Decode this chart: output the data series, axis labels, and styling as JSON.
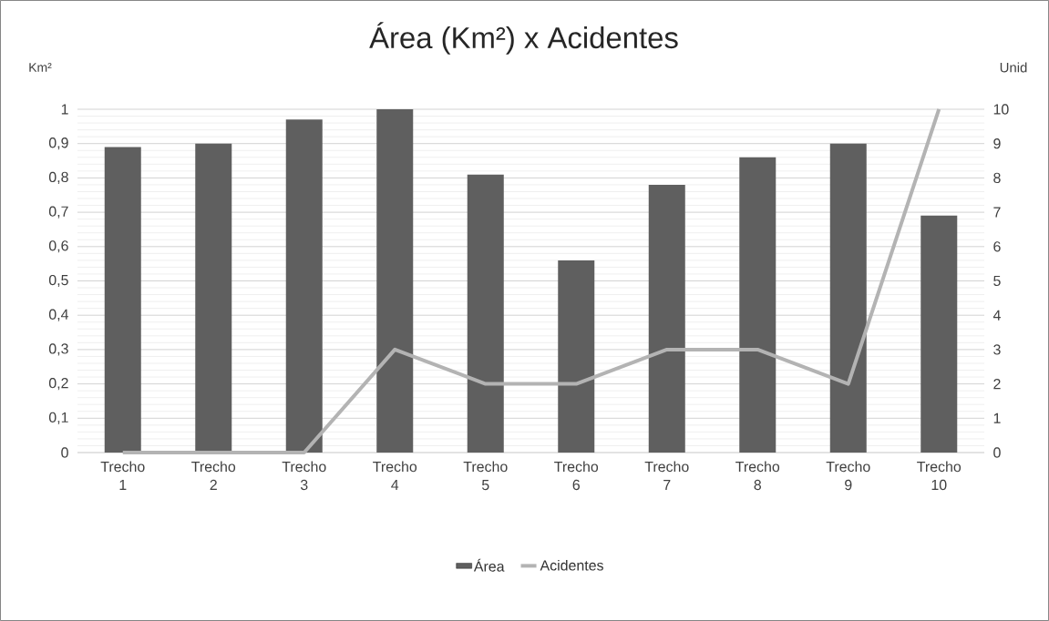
{
  "chart_data": {
    "type": "bar",
    "title": "Área (Km²) x Acidentes",
    "ylabel": "Km²",
    "y2label": "Unid",
    "categories": [
      "Trecho 1",
      "Trecho 2",
      "Trecho 3",
      "Trecho 4",
      "Trecho 5",
      "Trecho 6",
      "Trecho 7",
      "Trecho 8",
      "Trecho 9",
      "Trecho 10"
    ],
    "series": [
      {
        "name": "Área",
        "color": "#5f5f5f",
        "values": [
          0.89,
          0.9,
          0.97,
          1.0,
          0.81,
          0.56,
          0.78,
          0.86,
          0.9,
          0.69
        ]
      },
      {
        "name": "Acidentes",
        "type": "line",
        "axis": "y2",
        "color": "#b3b3b3",
        "values": [
          0,
          0,
          0,
          3,
          2,
          2,
          3,
          3,
          2,
          10
        ]
      }
    ],
    "ylim": [
      0,
      1
    ],
    "yticks": [
      0,
      {
        "value": 0.1,
        "label": "0,1"
      },
      {
        "value": 0.2,
        "label": "0,2"
      },
      {
        "value": 0.3,
        "label": "0,3"
      },
      {
        "value": 0.4,
        "label": "0,4"
      },
      {
        "value": 0.5,
        "label": "0,5"
      },
      {
        "value": 0.6,
        "label": "0,6"
      },
      {
        "value": 0.7,
        "label": "0,7"
      },
      {
        "value": 0.8,
        "label": "0,8"
      },
      {
        "value": 0.9,
        "label": "0,9"
      },
      1
    ],
    "y2lim": [
      0,
      10
    ],
    "y2ticks": [
      0,
      1,
      2,
      3,
      4,
      5,
      6,
      7,
      8,
      9,
      10
    ],
    "grid": "y",
    "legend": "bottom"
  }
}
